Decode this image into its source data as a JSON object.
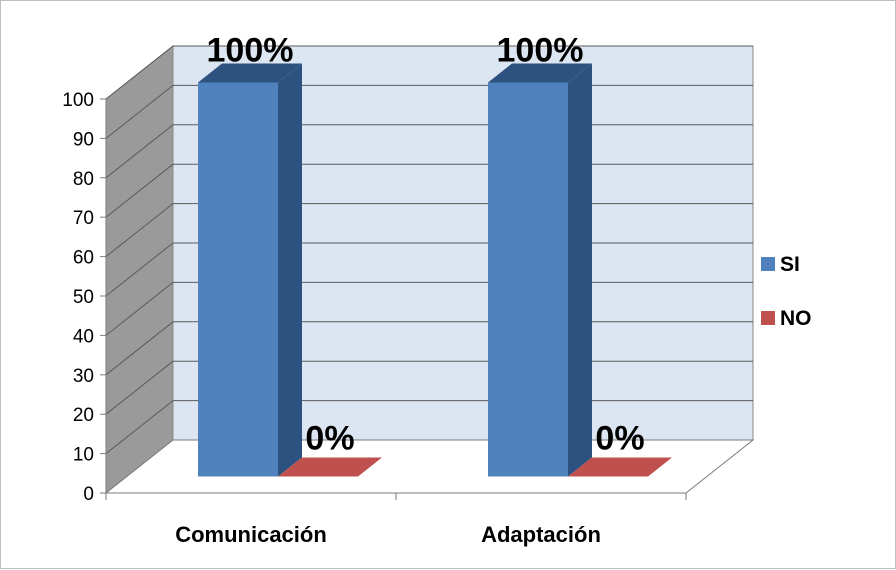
{
  "chart_data": {
    "type": "bar",
    "title": "",
    "xlabel": "",
    "ylabel": "",
    "categories": [
      "Comunicación",
      "Adaptación"
    ],
    "series": [
      {
        "name": "SI",
        "values": [
          100,
          100
        ],
        "labels": [
          "100%",
          "100%"
        ],
        "color": "#4f81bd"
      },
      {
        "name": "NO",
        "values": [
          0,
          0
        ],
        "labels": [
          "0%",
          "0%"
        ],
        "color": "#c0504d"
      }
    ],
    "ylim": [
      0,
      100
    ],
    "yticks": [
      0,
      10,
      20,
      30,
      40,
      50,
      60,
      70,
      80,
      90,
      100
    ],
    "grid": true,
    "legend_position": "right",
    "style": "3d-column",
    "colors": {
      "back_wall": "#dce6f2",
      "side_wall": "#9a9a9a",
      "grid": "#5a5a5a"
    }
  }
}
